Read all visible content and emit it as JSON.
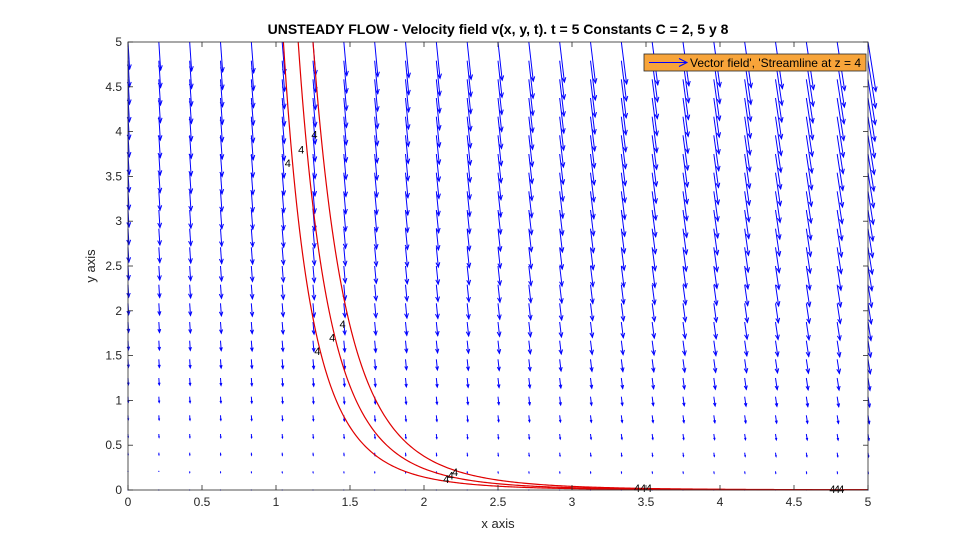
{
  "chart_data": {
    "type": "vector-field",
    "title": "UNSTEADY FLOW - Velocity field v(x, y, t). t = 5  Constants C = 2, 5 y 8",
    "xlabel": "x axis",
    "ylabel": "y axis",
    "xlim": [
      0,
      5
    ],
    "ylim": [
      0,
      5
    ],
    "xticks": [
      "0",
      "0.5",
      "1",
      "1.5",
      "2",
      "2.5",
      "3",
      "3.5",
      "4",
      "4.5",
      "5"
    ],
    "yticks": [
      "0",
      "0.5",
      "1",
      "1.5",
      "2",
      "2.5",
      "3",
      "3.5",
      "4",
      "4.5",
      "5"
    ],
    "grid": false,
    "legend": {
      "position": "top-right",
      "text": "Vector field', 'Streamline at z = 4",
      "background": "#f7a43a"
    },
    "quiver": {
      "color": "#0000ff",
      "grid_x": [
        0,
        0.2083,
        0.4167,
        0.625,
        0.8333,
        1.0417,
        1.25,
        1.4583,
        1.6667,
        1.875,
        2.0833,
        2.2917,
        2.5,
        2.7083,
        2.9167,
        3.125,
        3.3333,
        3.5417,
        3.75,
        3.9583,
        4.1667,
        4.375,
        4.5833,
        4.7917,
        5.0
      ],
      "grid_y": [
        0,
        0.2083,
        0.4167,
        0.625,
        0.8333,
        1.0417,
        1.25,
        1.4583,
        1.6667,
        1.875,
        2.0833,
        2.2917,
        2.5,
        2.7083,
        2.9167,
        3.125,
        3.3333,
        3.5417,
        3.75,
        3.9583,
        4.1667,
        4.375,
        4.5833,
        4.7917,
        5.0
      ],
      "u_per_xy": 1,
      "v_per_y": -1,
      "max_arrow_length": 0.4
    },
    "streamlines": {
      "color": "#e00000",
      "level_label": "4",
      "series": [
        {
          "k": 1.05
        },
        {
          "k": 1.15
        },
        {
          "k": 1.25
        }
      ],
      "labels": [
        {
          "x": 1.08,
          "y": 3.65
        },
        {
          "x": 1.17,
          "y": 3.8
        },
        {
          "x": 1.26,
          "y": 3.97
        },
        {
          "x": 1.28,
          "y": 1.55
        },
        {
          "x": 1.38,
          "y": 1.7
        },
        {
          "x": 1.45,
          "y": 1.85
        },
        {
          "x": 2.15,
          "y": 0.12
        },
        {
          "x": 2.18,
          "y": 0.16
        },
        {
          "x": 2.21,
          "y": 0.2
        },
        {
          "x": 3.44,
          "y": 0.02
        },
        {
          "x": 3.48,
          "y": 0.02
        },
        {
          "x": 3.52,
          "y": 0.02
        },
        {
          "x": 4.76,
          "y": 0.01
        },
        {
          "x": 4.79,
          "y": 0.01
        },
        {
          "x": 4.82,
          "y": 0.01
        }
      ]
    }
  }
}
